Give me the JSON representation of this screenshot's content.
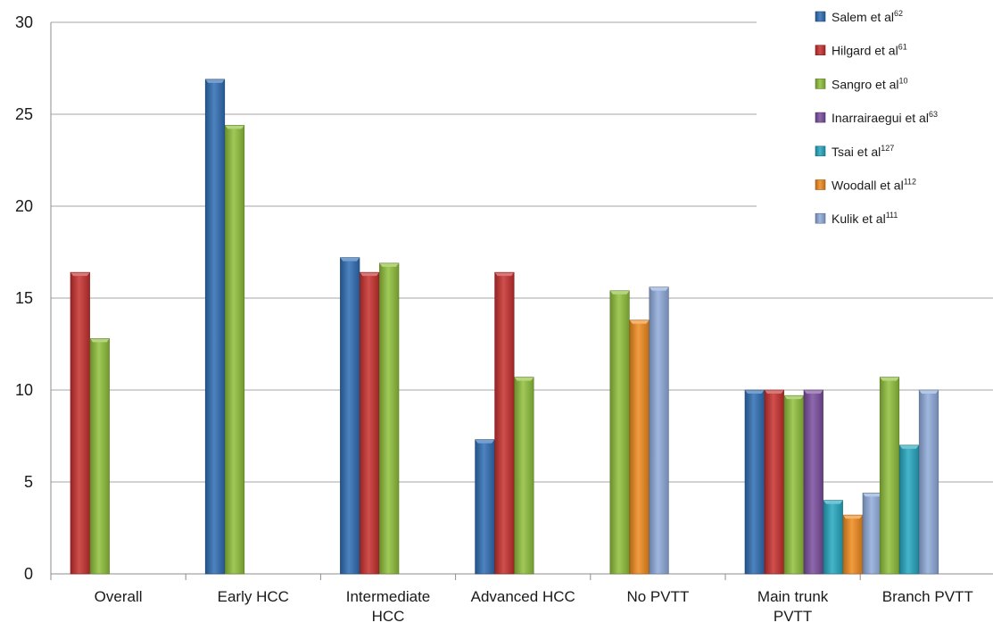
{
  "chart_data": {
    "type": "bar",
    "categories": [
      "Overall",
      "Early HCC",
      "Intermediate HCC",
      "Advanced HCC",
      "No PVTT",
      "Main trunk PVTT",
      "Branch PVTT"
    ],
    "category_lines": [
      [
        "Overall"
      ],
      [
        "Early HCC"
      ],
      [
        "Intermediate",
        "HCC"
      ],
      [
        "Advanced HCC"
      ],
      [
        "No PVTT"
      ],
      [
        "Main trunk",
        "PVTT"
      ],
      [
        "Branch PVTT"
      ]
    ],
    "ylim": [
      0,
      30
    ],
    "yticks": [
      0,
      5,
      10,
      15,
      20,
      25,
      30
    ],
    "grid": true,
    "legend_position": "top-right",
    "series": [
      {
        "name": "Salem et al",
        "ref": "62",
        "color": "#2f6db4",
        "values": [
          null,
          26.9,
          17.2,
          7.3,
          null,
          10.0,
          null
        ]
      },
      {
        "name": "Hilgard et al",
        "ref": "61",
        "color": "#c6302e",
        "values": [
          16.4,
          null,
          16.4,
          16.4,
          null,
          10.0,
          null
        ]
      },
      {
        "name": "Sangro et al",
        "ref": "10",
        "color": "#8fbf3a",
        "values": [
          12.8,
          24.4,
          16.9,
          10.7,
          15.4,
          9.7,
          10.7
        ]
      },
      {
        "name": "Inarrairaegui et al",
        "ref": "63",
        "color": "#7a4d9e",
        "values": [
          null,
          null,
          null,
          null,
          null,
          10.0,
          null
        ]
      },
      {
        "name": "Tsai et al",
        "ref": "127",
        "color": "#25a7c0",
        "values": [
          null,
          null,
          null,
          null,
          null,
          4.0,
          7.0
        ]
      },
      {
        "name": "Woodall et al",
        "ref": "112",
        "color": "#f08a1e",
        "values": [
          null,
          null,
          null,
          null,
          13.8,
          3.2,
          null
        ]
      },
      {
        "name": "Kulik et al",
        "ref": "111",
        "color": "#8faadb",
        "values": [
          null,
          null,
          null,
          null,
          15.6,
          4.4,
          10.0
        ]
      }
    ]
  }
}
